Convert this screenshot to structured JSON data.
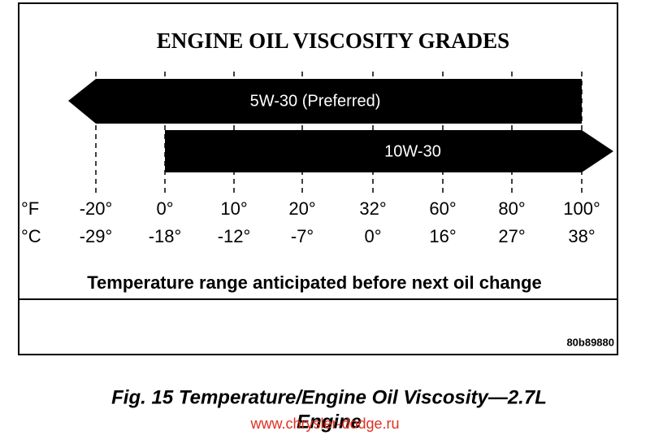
{
  "title": "ENGINE OIL VISCOSITY GRADES",
  "grades": [
    {
      "label": "5W-30 (Preferred)"
    },
    {
      "label": "10W-30"
    }
  ],
  "units": [
    "°F",
    "°C"
  ],
  "columns": [
    {
      "f": "-20°",
      "c": "-29°"
    },
    {
      "f": "0°",
      "c": "-18°"
    },
    {
      "f": "10°",
      "c": "-12°"
    },
    {
      "f": "20°",
      "c": "-7°"
    },
    {
      "f": "32°",
      "c": "0°"
    },
    {
      "f": "60°",
      "c": "16°"
    },
    {
      "f": "80°",
      "c": "27°"
    },
    {
      "f": "100°",
      "c": "38°"
    }
  ],
  "range_caption": "Temperature range anticipated before next oil change",
  "code": "80b89880",
  "figure_caption": [
    "Fig. 15 Temperature/Engine Oil Viscosity—2.7L",
    "Engine"
  ],
  "watermark": "www.chrysler-dodge.ru"
}
